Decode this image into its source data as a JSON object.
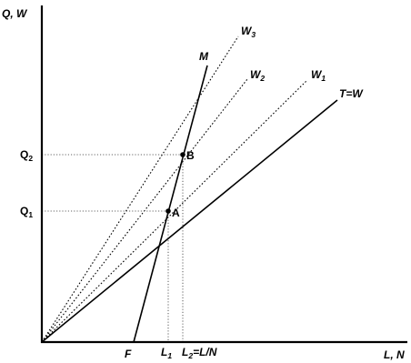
{
  "axes": {
    "y_label": "Q, W",
    "x_label": "L, N"
  },
  "lines": {
    "w3": {
      "base": "W",
      "sub": "3"
    },
    "w2": {
      "base": "W",
      "sub": "2"
    },
    "w1": {
      "base": "W",
      "sub": "1"
    },
    "tw": {
      "label": "T=W"
    },
    "m": {
      "label": "M"
    }
  },
  "points": {
    "a": {
      "label": "A"
    },
    "b": {
      "label": "B"
    }
  },
  "y_ticks": {
    "q2": {
      "base": "Q",
      "sub": "2"
    },
    "q1": {
      "base": "Q",
      "sub": "1"
    }
  },
  "x_ticks": {
    "f": {
      "label": "F"
    },
    "l1": {
      "base": "L",
      "sub": "1"
    },
    "l2": {
      "base": "L",
      "sub": "2",
      "suffix": "=L/N"
    }
  }
}
